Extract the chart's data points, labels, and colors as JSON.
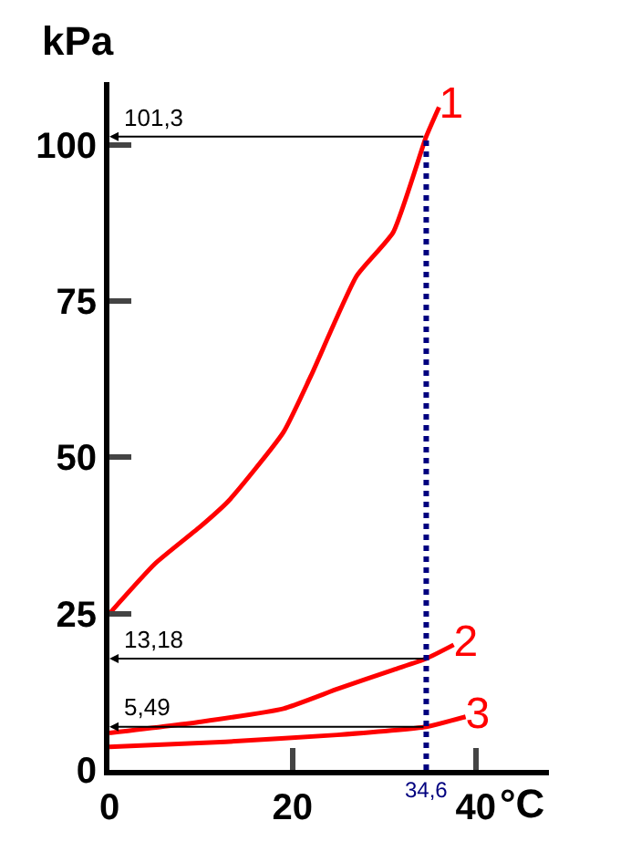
{
  "chart_data": {
    "type": "line",
    "xlabel": "°C",
    "ylabel": "kPa",
    "series": [
      {
        "name": "1",
        "color": "#ff0000",
        "x": [
          0,
          5,
          10,
          13,
          19,
          22,
          27,
          31,
          34.6,
          36
        ],
        "values": [
          25,
          33,
          39,
          43,
          54,
          63,
          79,
          86,
          101.3,
          106
        ]
      },
      {
        "name": "2",
        "color": "#ff0000",
        "x": [
          0,
          10,
          19,
          25,
          31,
          34.6,
          37.6
        ],
        "values": [
          5.9,
          7.7,
          9.8,
          13,
          16,
          17.8,
          20
        ]
      },
      {
        "name": "3",
        "color": "#ff0000",
        "x": [
          0,
          12.7,
          24.9,
          34.6,
          38.9
        ],
        "values": [
          3.7,
          4.5,
          5.6,
          6.9,
          8.5
        ]
      }
    ],
    "annotations": [
      "101,3",
      "13,18",
      "5,49"
    ],
    "ref_lines": [
      {
        "axis": "x",
        "value": 34.6,
        "label": "34,6",
        "color": "#00007f",
        "line_style": "dotted"
      }
    ],
    "xlim": [
      0,
      48
    ],
    "ylim": [
      0,
      110
    ],
    "xticks": [
      0,
      20,
      40
    ],
    "yticks": [
      0,
      25,
      50,
      75,
      100
    ],
    "legend": false,
    "marker": "none",
    "line_style": "solid"
  }
}
